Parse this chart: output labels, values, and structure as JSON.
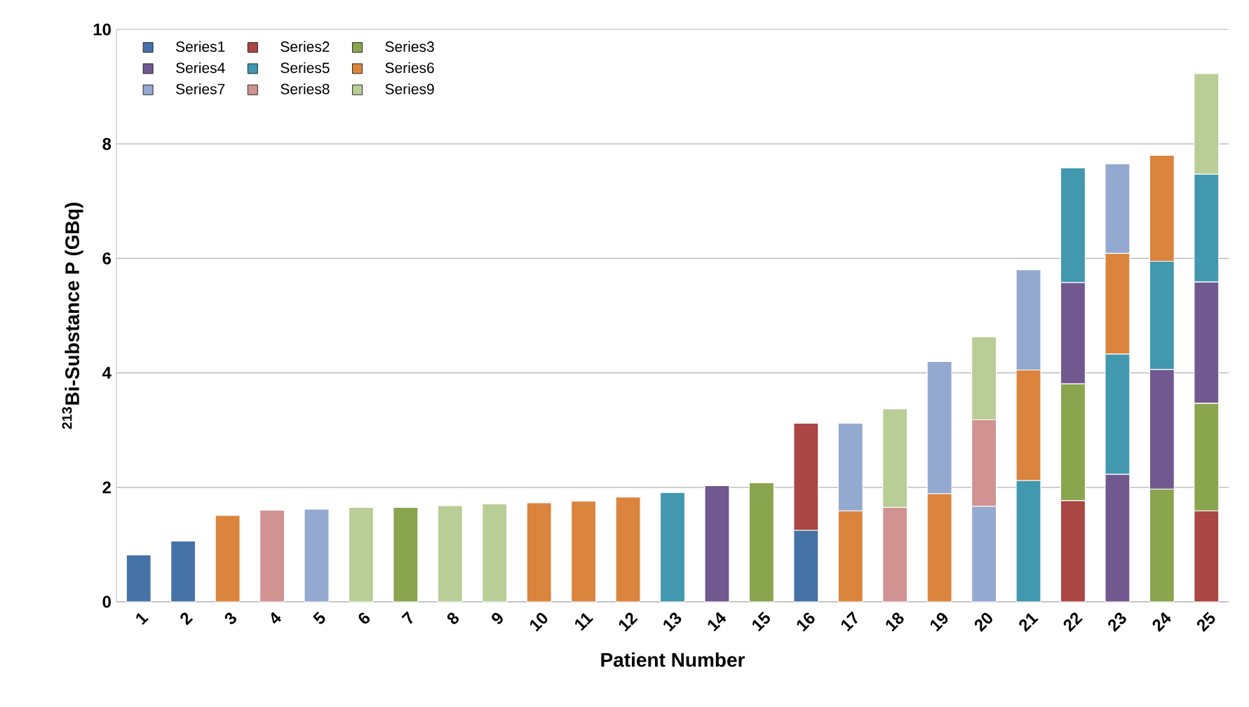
{
  "chart_data": {
    "type": "bar",
    "stacked": true,
    "xlabel": "Patient Number",
    "ylabel": "$^{213}$Bi-Substance P (GBq)",
    "categories": [
      "1",
      "2",
      "3",
      "4",
      "5",
      "6",
      "7",
      "8",
      "9",
      "10",
      "11",
      "12",
      "13",
      "14",
      "15",
      "16",
      "17",
      "18",
      "19",
      "20",
      "21",
      "22",
      "23",
      "24",
      "25"
    ],
    "series": [
      {
        "name": "Series1",
        "color": "#4572a7",
        "values": [
          0.82,
          1.06,
          null,
          null,
          null,
          null,
          null,
          null,
          null,
          null,
          null,
          null,
          null,
          null,
          null,
          1.25,
          null,
          null,
          null,
          null,
          null,
          null,
          null,
          null,
          null
        ]
      },
      {
        "name": "Series2",
        "color": "#aa4643",
        "values": [
          null,
          null,
          null,
          null,
          null,
          null,
          null,
          null,
          null,
          null,
          null,
          null,
          null,
          null,
          null,
          1.87,
          null,
          null,
          null,
          null,
          null,
          1.77,
          null,
          null,
          1.59
        ]
      },
      {
        "name": "Series3",
        "color": "#89a54e",
        "values": [
          null,
          null,
          null,
          null,
          null,
          null,
          1.65,
          null,
          null,
          null,
          null,
          null,
          null,
          null,
          2.08,
          null,
          null,
          null,
          null,
          null,
          null,
          2.04,
          null,
          1.97,
          1.88
        ]
      },
      {
        "name": "Series4",
        "color": "#71588f",
        "values": [
          null,
          null,
          null,
          null,
          null,
          null,
          null,
          null,
          null,
          null,
          null,
          null,
          null,
          2.03,
          null,
          null,
          null,
          null,
          null,
          null,
          null,
          1.77,
          2.23,
          2.09,
          2.12
        ]
      },
      {
        "name": "Series5",
        "color": "#4198af",
        "values": [
          null,
          null,
          null,
          null,
          null,
          null,
          null,
          null,
          null,
          null,
          null,
          null,
          1.91,
          null,
          null,
          null,
          null,
          null,
          null,
          null,
          2.12,
          2.0,
          2.1,
          1.89,
          1.88
        ]
      },
      {
        "name": "Series6",
        "color": "#db843d",
        "values": [
          null,
          null,
          1.51,
          null,
          null,
          null,
          null,
          null,
          null,
          1.73,
          1.76,
          1.83,
          null,
          null,
          null,
          null,
          1.59,
          null,
          1.89,
          null,
          1.93,
          null,
          1.76,
          1.85,
          null
        ]
      },
      {
        "name": "Series7",
        "color": "#93a9cf",
        "values": [
          null,
          null,
          null,
          null,
          1.62,
          null,
          null,
          null,
          null,
          null,
          null,
          null,
          null,
          null,
          null,
          null,
          1.53,
          null,
          2.31,
          1.67,
          1.75,
          null,
          1.56,
          null,
          null
        ]
      },
      {
        "name": "Series8",
        "color": "#d19392",
        "values": [
          null,
          null,
          null,
          1.6,
          null,
          null,
          null,
          null,
          null,
          null,
          null,
          null,
          null,
          null,
          null,
          null,
          null,
          1.65,
          null,
          1.51,
          null,
          null,
          null,
          null,
          null
        ]
      },
      {
        "name": "Series9",
        "color": "#b9cd96",
        "values": [
          null,
          null,
          null,
          null,
          null,
          1.65,
          null,
          1.68,
          1.71,
          null,
          null,
          null,
          null,
          null,
          null,
          null,
          null,
          1.72,
          null,
          1.45,
          null,
          null,
          null,
          null,
          1.76
        ]
      }
    ],
    "ylim": [
      0,
      10
    ],
    "yticks": [
      0,
      2,
      4,
      6,
      8,
      10
    ],
    "grid": "y",
    "legend": "top left"
  }
}
